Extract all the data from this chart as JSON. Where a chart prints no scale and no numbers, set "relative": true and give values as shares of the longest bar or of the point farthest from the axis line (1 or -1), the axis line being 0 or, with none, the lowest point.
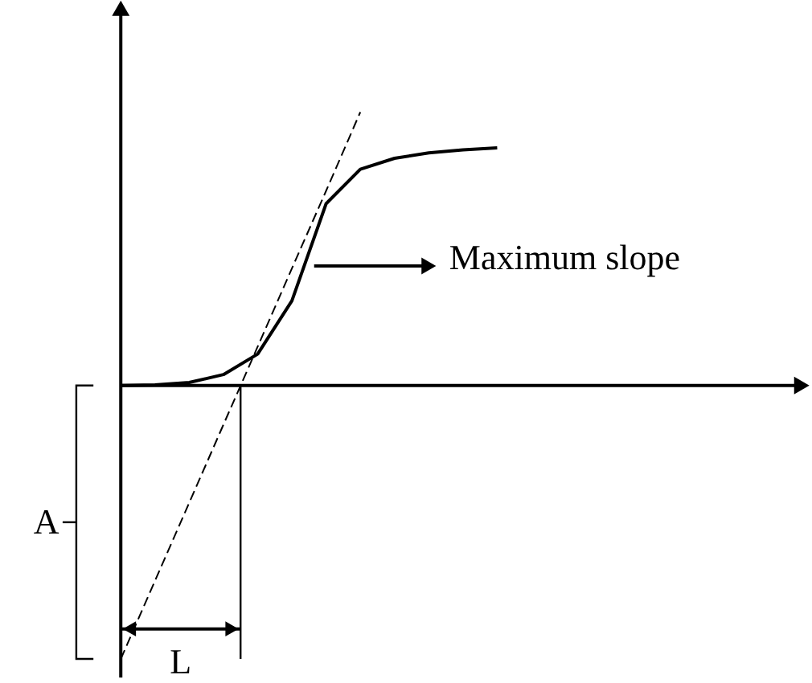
{
  "chart_data": {
    "type": "line",
    "relative": true,
    "categories": [
      null,
      null,
      null,
      null,
      null,
      null,
      null,
      null,
      null,
      null,
      null,
      null
    ],
    "series": [
      {
        "color": "#000000",
        "line_style": "solid",
        "values": [
          0,
          0.002,
          0.011,
          0.04,
          0.115,
          0.31,
          0.665,
          0.791,
          0.831,
          0.851,
          0.862,
          0.869
        ]
      },
      {
        "color": "#000000",
        "line_style": "dashed",
        "values": [
          -1,
          -0.714,
          -0.429,
          -0.143,
          0.142,
          0.428,
          0.712,
          1.0,
          null,
          null,
          null,
          null
        ]
      }
    ],
    "annotations": [
      "Maximum slope",
      "A",
      "L"
    ]
  }
}
